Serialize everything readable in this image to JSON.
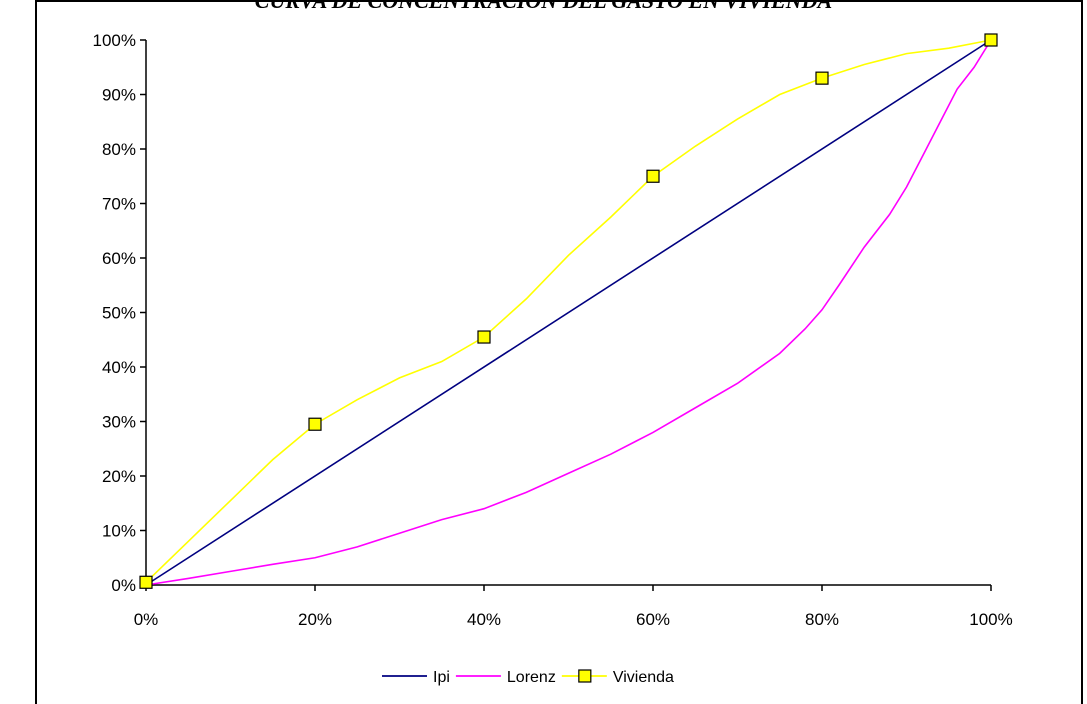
{
  "chart_data": {
    "type": "line",
    "title": "CURVA DE CONCENTRACIÓN DEL GASTO EN VIVIENDA",
    "xlabel": "",
    "ylabel": "",
    "xlim": [
      0,
      100
    ],
    "ylim": [
      0,
      100
    ],
    "x_ticks": [
      "0%",
      "20%",
      "40%",
      "60%",
      "80%",
      "100%"
    ],
    "y_ticks": [
      "0%",
      "10%",
      "20%",
      "30%",
      "40%",
      "50%",
      "60%",
      "70%",
      "80%",
      "90%",
      "100%"
    ],
    "grid": false,
    "legend_position": "bottom",
    "series": [
      {
        "name": "Ipi",
        "color": "#000080",
        "marker": "none",
        "x": [
          0,
          100
        ],
        "y": [
          0,
          100
        ]
      },
      {
        "name": "Lorenz",
        "color": "#ff00ff",
        "marker": "none",
        "x": [
          0,
          5,
          10,
          15,
          20,
          25,
          30,
          35,
          40,
          45,
          50,
          55,
          60,
          65,
          70,
          75,
          78,
          80,
          82,
          85,
          88,
          90,
          92,
          94,
          96,
          98,
          100
        ],
        "y": [
          0,
          1.2,
          2.5,
          3.8,
          5,
          7,
          9.5,
          12,
          14,
          17,
          20.5,
          24,
          28,
          32.5,
          37,
          42.5,
          47,
          50.5,
          55,
          62,
          68,
          73,
          79,
          85,
          91,
          95,
          100
        ]
      },
      {
        "name": "Vivienda",
        "color": "#ffff00",
        "marker": "square",
        "marker_x": [
          0,
          20,
          40,
          60,
          80,
          100
        ],
        "marker_y": [
          0.5,
          29.5,
          45.5,
          75,
          93,
          100
        ],
        "x": [
          0,
          5,
          10,
          15,
          20,
          25,
          30,
          35,
          40,
          45,
          50,
          55,
          60,
          65,
          70,
          75,
          80,
          85,
          90,
          95,
          100
        ],
        "y": [
          0.5,
          8,
          15.5,
          23,
          29.5,
          34,
          38,
          41,
          45.5,
          52.5,
          60.5,
          67.5,
          75,
          80.5,
          85.5,
          90,
          93,
          95.5,
          97.5,
          98.5,
          100
        ]
      }
    ]
  }
}
